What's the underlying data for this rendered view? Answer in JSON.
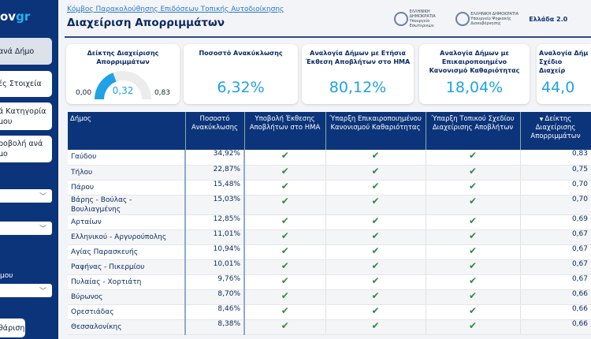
{
  "sidebar": {
    "logo_a": "ov",
    "logo_b": "gr",
    "nav": [
      "ανά Δήμο",
      "ές Στοιχεία",
      "ά Κατηγορία μου",
      "ροβολή ανά μο"
    ],
    "filter_label": "μου",
    "reset": "θάριση"
  },
  "header": {
    "link": "Κόμβος Παρακολούθησης Επιδόσεων Τοπικής Αυτοδιοίκησης",
    "title": "Διαχείριση Απορριμμάτων",
    "logos": [
      "ΕΛΛΗΝΙΚΗ ΔΗΜΟΚΡΑΤΙΑ Υπουργείο Εσωτερικών",
      "ΕΛΛΗΝΙΚΗ ΔΗΜΟΚΡΑΤΙΑ Υπουργείο Ψηφιακής Διακυβέρνησης",
      "Ελλάδα 2.0"
    ]
  },
  "gauge": {
    "title": "Δείκτης Διαχείρισης Απορριμμάτων",
    "value": 0.32,
    "value_label": "0,32",
    "min": "0,00",
    "max": "0,83",
    "max_value": 0.83,
    "color": "#1fa2e6"
  },
  "cards": [
    {
      "title": "Ποσοστό Ανακύκλωσης",
      "value": "6,32%"
    },
    {
      "title": "Αναλογία Δήμων με Ετήσια Έκθεση Αποβλήτων στο ΗΜΑ",
      "value": "80,12%"
    },
    {
      "title": "Αναλογία Δήμων με Επικαιροποιημένο Κανονισμό Καθαριότητας",
      "value": "18,04%"
    },
    {
      "title": "Αναλογία Δήμ Σχέδιο Διαχείρ",
      "value": "44,0"
    }
  ],
  "table": {
    "headers": [
      "Δήμος",
      "Ποσοστό Ανακύκλωσης",
      "Υποβολή Έκθεσης Αποβλήτων στο ΗΜΑ",
      "Ύπαρξη Επικαιροποιημένου Κανονισμού Καθαριότητας",
      "Ύπαρξη Τοπικού Σχεδίου Διαχείρισης Αποβλήτων",
      "Δείκτης Διαχείρισης Απορριμμάτων"
    ],
    "check_icon": "checkmark-icon",
    "check_color": "#2f8a3e",
    "rows": [
      [
        "Γαύδου",
        "34,92%",
        true,
        true,
        true,
        "0,83"
      ],
      [
        "Τήλου",
        "22,87%",
        true,
        true,
        true,
        "0,75"
      ],
      [
        "Πάρου",
        "15,48%",
        true,
        true,
        true,
        "0,70"
      ],
      [
        "Βάρης - Βούλας - Βουλιαγμένης",
        "15,03%",
        true,
        true,
        true,
        "0,70"
      ],
      [
        "Αρταίων",
        "12,85%",
        true,
        true,
        true,
        "0,69"
      ],
      [
        "Ελληνικού - Αργυρούπολης",
        "11,01%",
        true,
        true,
        true,
        "0,67"
      ],
      [
        "Αγίας Παρασκευής",
        "10,94%",
        true,
        true,
        true,
        "0,67"
      ],
      [
        "Ραφήνας - Πικερμίου",
        "10,01%",
        true,
        true,
        true,
        "0,67"
      ],
      [
        "Πυλαίας - Χορτιάτη",
        "9,76%",
        true,
        true,
        true,
        "0,67"
      ],
      [
        "Βύρωνος",
        "8,70%",
        true,
        true,
        true,
        "0,66"
      ],
      [
        "Ορεστιάδας",
        "8,46%",
        true,
        true,
        true,
        "0,66"
      ],
      [
        "Θεσσαλονίκης",
        "8,38%",
        true,
        true,
        true,
        "0,66"
      ]
    ]
  }
}
